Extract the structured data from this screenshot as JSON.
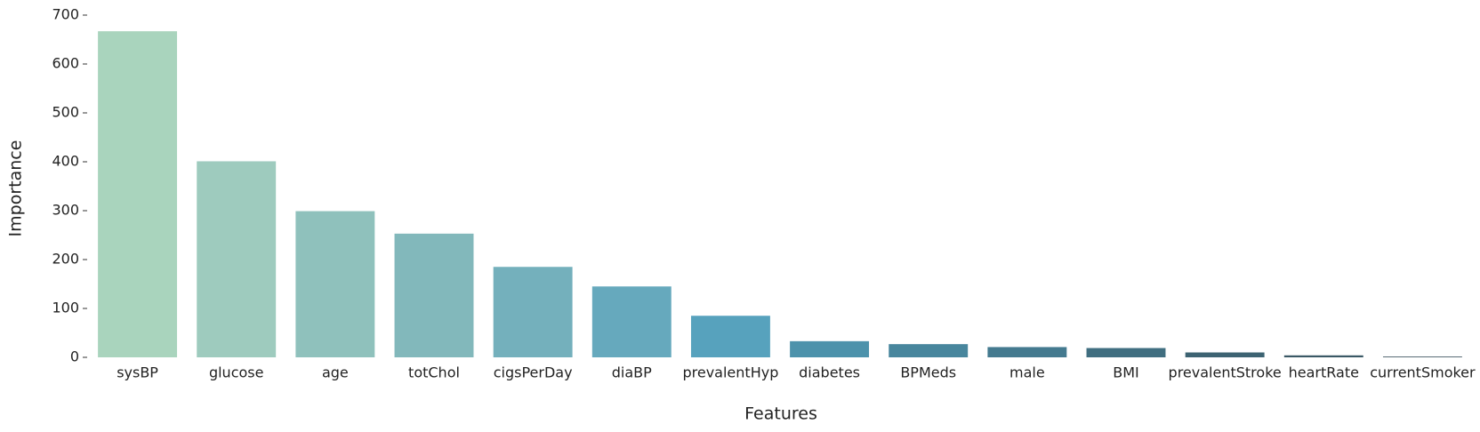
{
  "chart_data": {
    "type": "bar",
    "xlabel": "Features",
    "ylabel": "Importance",
    "categories": [
      "sysBP",
      "glucose",
      "age",
      "totChol",
      "cigsPerDay",
      "diaBP",
      "prevalentHyp",
      "diabetes",
      "BPMeds",
      "male",
      "BMI",
      "prevalentStroke",
      "heartRate",
      "currentSmoker"
    ],
    "values": [
      667,
      401,
      299,
      253,
      185,
      145,
      85,
      33,
      27,
      21,
      19,
      10,
      4,
      1.5
    ],
    "colors": [
      "#a9d4bd",
      "#9ecbbe",
      "#8fc1bc",
      "#82b8bb",
      "#74b0bc",
      "#66a9bd",
      "#57a2bd",
      "#4c92ab",
      "#48869d",
      "#447a8f",
      "#406e80",
      "#3d6372",
      "#3a5865",
      "#374e5a"
    ],
    "ylim": [
      0,
      700
    ],
    "yticks": [
      0,
      100,
      200,
      300,
      400,
      500,
      600,
      700
    ]
  }
}
